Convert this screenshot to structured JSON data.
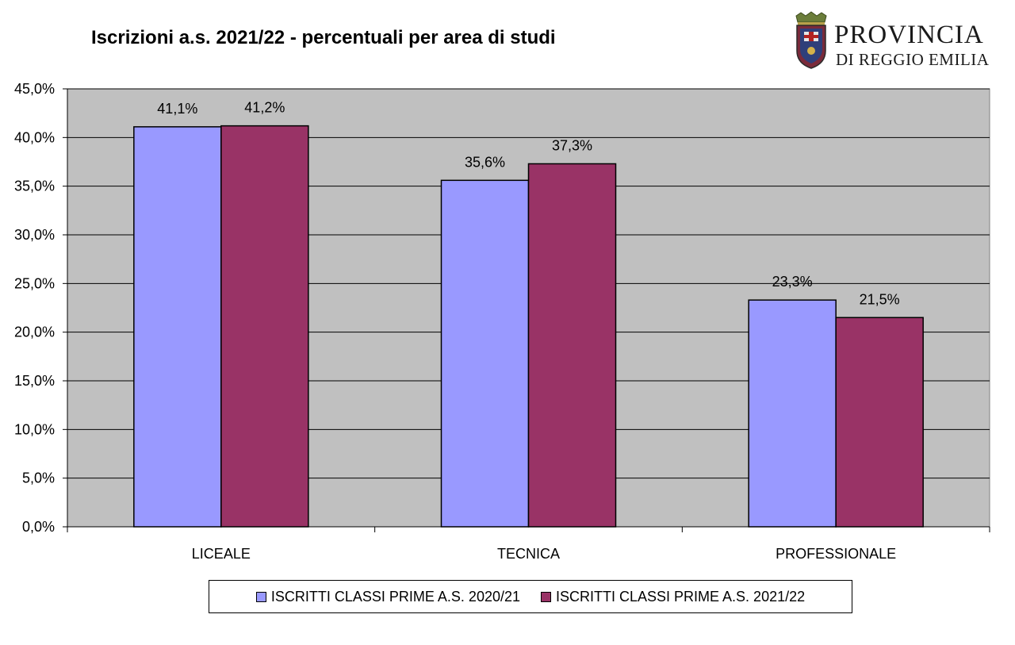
{
  "chart_data": {
    "type": "bar",
    "title": "Iscrizioni a.s. 2021/22 - percentuali per area di studi",
    "categories": [
      "LICEALE",
      "TECNICA",
      "PROFESSIONALE"
    ],
    "series": [
      {
        "name": "ISCRITTI CLASSI PRIME A.S. 2020/21",
        "values": [
          41.1,
          35.6,
          23.3
        ],
        "labels": [
          "41,1%",
          "35,6%",
          "23,3%"
        ],
        "color": "#9999ff"
      },
      {
        "name": "ISCRITTI CLASSI PRIME A.S. 2021/22",
        "values": [
          41.2,
          37.3,
          21.5
        ],
        "labels": [
          "41,2%",
          "37,3%",
          "21,5%"
        ],
        "color": "#993366"
      }
    ],
    "ylim": [
      0,
      45
    ],
    "yticks": [
      0,
      5,
      10,
      15,
      20,
      25,
      30,
      35,
      40,
      45
    ],
    "ytick_labels": [
      "0,0%",
      "5,0%",
      "10,0%",
      "15,0%",
      "20,0%",
      "25,0%",
      "30,0%",
      "35,0%",
      "40,0%",
      "45,0%"
    ],
    "xlabel": "",
    "ylabel": "",
    "grid": true,
    "legend_position": "bottom",
    "plot_background": "#c0c0c0"
  },
  "logo": {
    "line1": "PROVINCIA",
    "line2": "DI REGGIO EMILIA"
  }
}
